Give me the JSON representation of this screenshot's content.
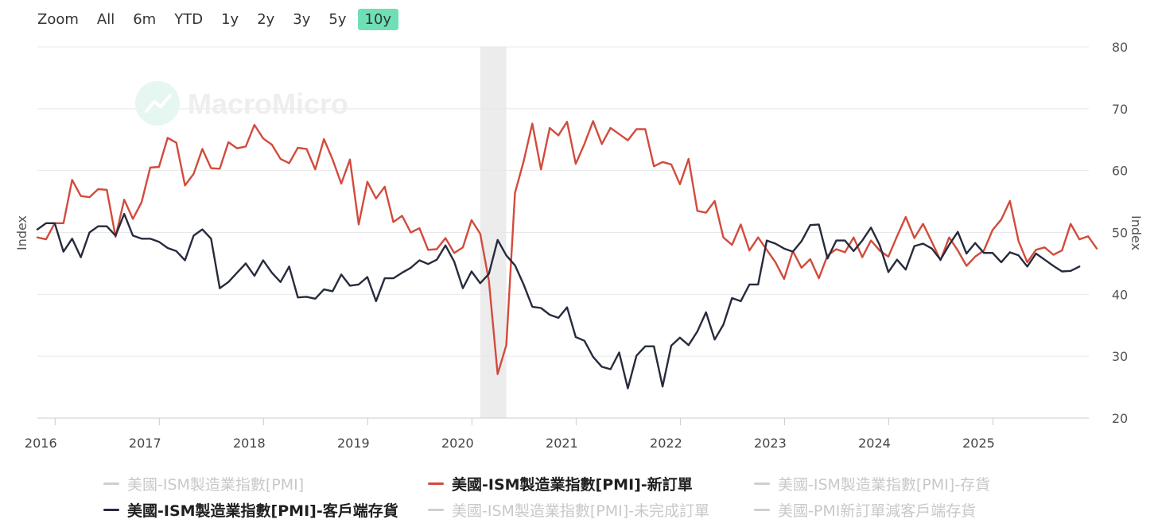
{
  "zoom": {
    "label": "Zoom",
    "options": [
      "All",
      "6m",
      "YTD",
      "1y",
      "2y",
      "3y",
      "5y",
      "10y"
    ],
    "active": "10y"
  },
  "watermark": "MacroMicro",
  "colors": {
    "new_orders": "#d24b3c",
    "customer_inventories": "#262b3d",
    "grid": "#e8e8e8",
    "recession_band": "#ececec",
    "active_zoom": "#6fe0b6"
  },
  "legend": [
    {
      "label": "美國-ISM製造業指數[PMI]",
      "state": "off"
    },
    {
      "label": "美國-ISM製造業指數[PMI]-新訂單",
      "state": "on",
      "color_key": "new_orders"
    },
    {
      "label": "美國-ISM製造業指數[PMI]-存貨",
      "state": "off"
    },
    {
      "label": "美國-ISM製造業指數[PMI]-客戶端存貨",
      "state": "on",
      "color_key": "customer_inventories"
    },
    {
      "label": "美國-ISM製造業指數[PMI]-未完成訂單",
      "state": "off"
    },
    {
      "label": "美國-PMI新訂單減客戶端存貨",
      "state": "off"
    }
  ],
  "chart_data": {
    "type": "line",
    "title": "",
    "xlabel": "",
    "ylabel_left": "Index",
    "ylabel_right": "Index",
    "x_range": [
      2015.83,
      2025.92
    ],
    "ylim": [
      20,
      80
    ],
    "yticks": [
      20,
      30,
      40,
      50,
      60,
      70,
      80
    ],
    "xticks": [
      {
        "label": "2016",
        "year": 2016
      },
      {
        "label": "2017",
        "year": 2017
      },
      {
        "label": "2018",
        "year": 2018
      },
      {
        "label": "2019",
        "year": 2019
      },
      {
        "label": "2020",
        "year": 2020
      },
      {
        "label": "2021",
        "year": 2021
      },
      {
        "label": "2022",
        "year": 2022
      },
      {
        "label": "2023",
        "year": 2023
      },
      {
        "label": "2024",
        "year": 2024
      },
      {
        "label": "2025",
        "year": 2025
      }
    ],
    "shaded_period": [
      2020.08,
      2020.33
    ],
    "start_year": 2015.83,
    "step": 0.08333,
    "series": [
      {
        "name": "美國-ISM製造業指數[PMI]-新訂單",
        "color_key": "new_orders",
        "values": [
          49.2,
          48.9,
          51.5,
          51.5,
          58.5,
          55.9,
          55.7,
          57.0,
          56.9,
          49.3,
          55.3,
          52.2,
          54.9,
          60.5,
          60.6,
          65.3,
          64.5,
          57.6,
          59.5,
          63.5,
          60.4,
          60.3,
          64.6,
          63.6,
          63.9,
          67.4,
          65.2,
          64.2,
          61.9,
          61.2,
          63.7,
          63.5,
          60.2,
          65.1,
          61.8,
          57.9,
          61.8,
          51.3,
          58.2,
          55.5,
          57.4,
          51.7,
          52.7,
          50.0,
          50.7,
          47.2,
          47.3,
          49.1,
          46.7,
          47.6,
          52.0,
          49.8,
          42.2,
          27.1,
          31.8,
          56.4,
          61.5,
          67.6,
          60.2,
          66.9,
          65.7,
          67.9,
          61.1,
          64.3,
          68.0,
          64.3,
          66.9,
          65.9,
          64.9,
          66.7,
          66.7,
          60.7,
          61.4,
          61.0,
          57.8,
          61.9,
          53.5,
          53.2,
          55.1,
          49.2,
          48.0,
          51.3,
          47.1,
          49.2,
          47.2,
          45.2,
          42.5,
          47.0,
          44.3,
          45.7,
          42.6,
          46.3,
          47.3,
          46.8,
          49.2,
          46.0,
          48.7,
          47.1,
          46.1,
          49.4,
          52.5,
          49.1,
          51.4,
          48.5,
          45.5,
          49.2,
          47.1,
          44.6,
          46.1,
          47.1,
          50.4,
          52.1,
          55.1,
          48.6,
          45.2,
          47.2,
          47.6,
          46.4,
          47.1,
          51.4,
          48.9,
          49.4,
          47.4
        ]
      },
      {
        "name": "美國-ISM製造業指數[PMI]-客戶端存貨",
        "color_key": "customer_inventories",
        "values": [
          50.5,
          51.5,
          51.5,
          46.9,
          49.0,
          46.0,
          50.0,
          51.0,
          51.0,
          49.5,
          53.0,
          49.5,
          49.0,
          49.0,
          48.5,
          47.5,
          47.0,
          45.5,
          49.5,
          50.5,
          49.0,
          41.0,
          42.0,
          43.5,
          45.0,
          43.0,
          45.5,
          43.5,
          42.0,
          44.5,
          39.5,
          39.6,
          39.3,
          40.8,
          40.5,
          43.2,
          41.4,
          41.6,
          42.8,
          38.9,
          42.6,
          42.6,
          43.5,
          44.3,
          45.5,
          44.9,
          45.6,
          47.9,
          45.3,
          41.0,
          43.7,
          41.8,
          43.3,
          48.8,
          46.3,
          44.7,
          41.6,
          38.0,
          37.8,
          36.7,
          36.2,
          37.9,
          33.1,
          32.5,
          29.9,
          28.3,
          27.9,
          30.6,
          24.8,
          30.1,
          31.6,
          31.6,
          25.1,
          31.7,
          33.0,
          31.8,
          34.0,
          37.1,
          32.7,
          35.1,
          39.4,
          38.9,
          41.6,
          41.6,
          48.7,
          48.2,
          47.4,
          46.9,
          48.6,
          51.2,
          51.3,
          45.8,
          48.7,
          48.7,
          47.0,
          48.7,
          50.8,
          48.0,
          43.6,
          45.6,
          44.0,
          47.8,
          48.2,
          47.4,
          45.6,
          48.0,
          50.1,
          46.6,
          48.3,
          46.7,
          46.7,
          45.2,
          46.8,
          46.3,
          44.5,
          46.6,
          45.6,
          44.6,
          43.7,
          43.8,
          44.5
        ]
      }
    ]
  }
}
